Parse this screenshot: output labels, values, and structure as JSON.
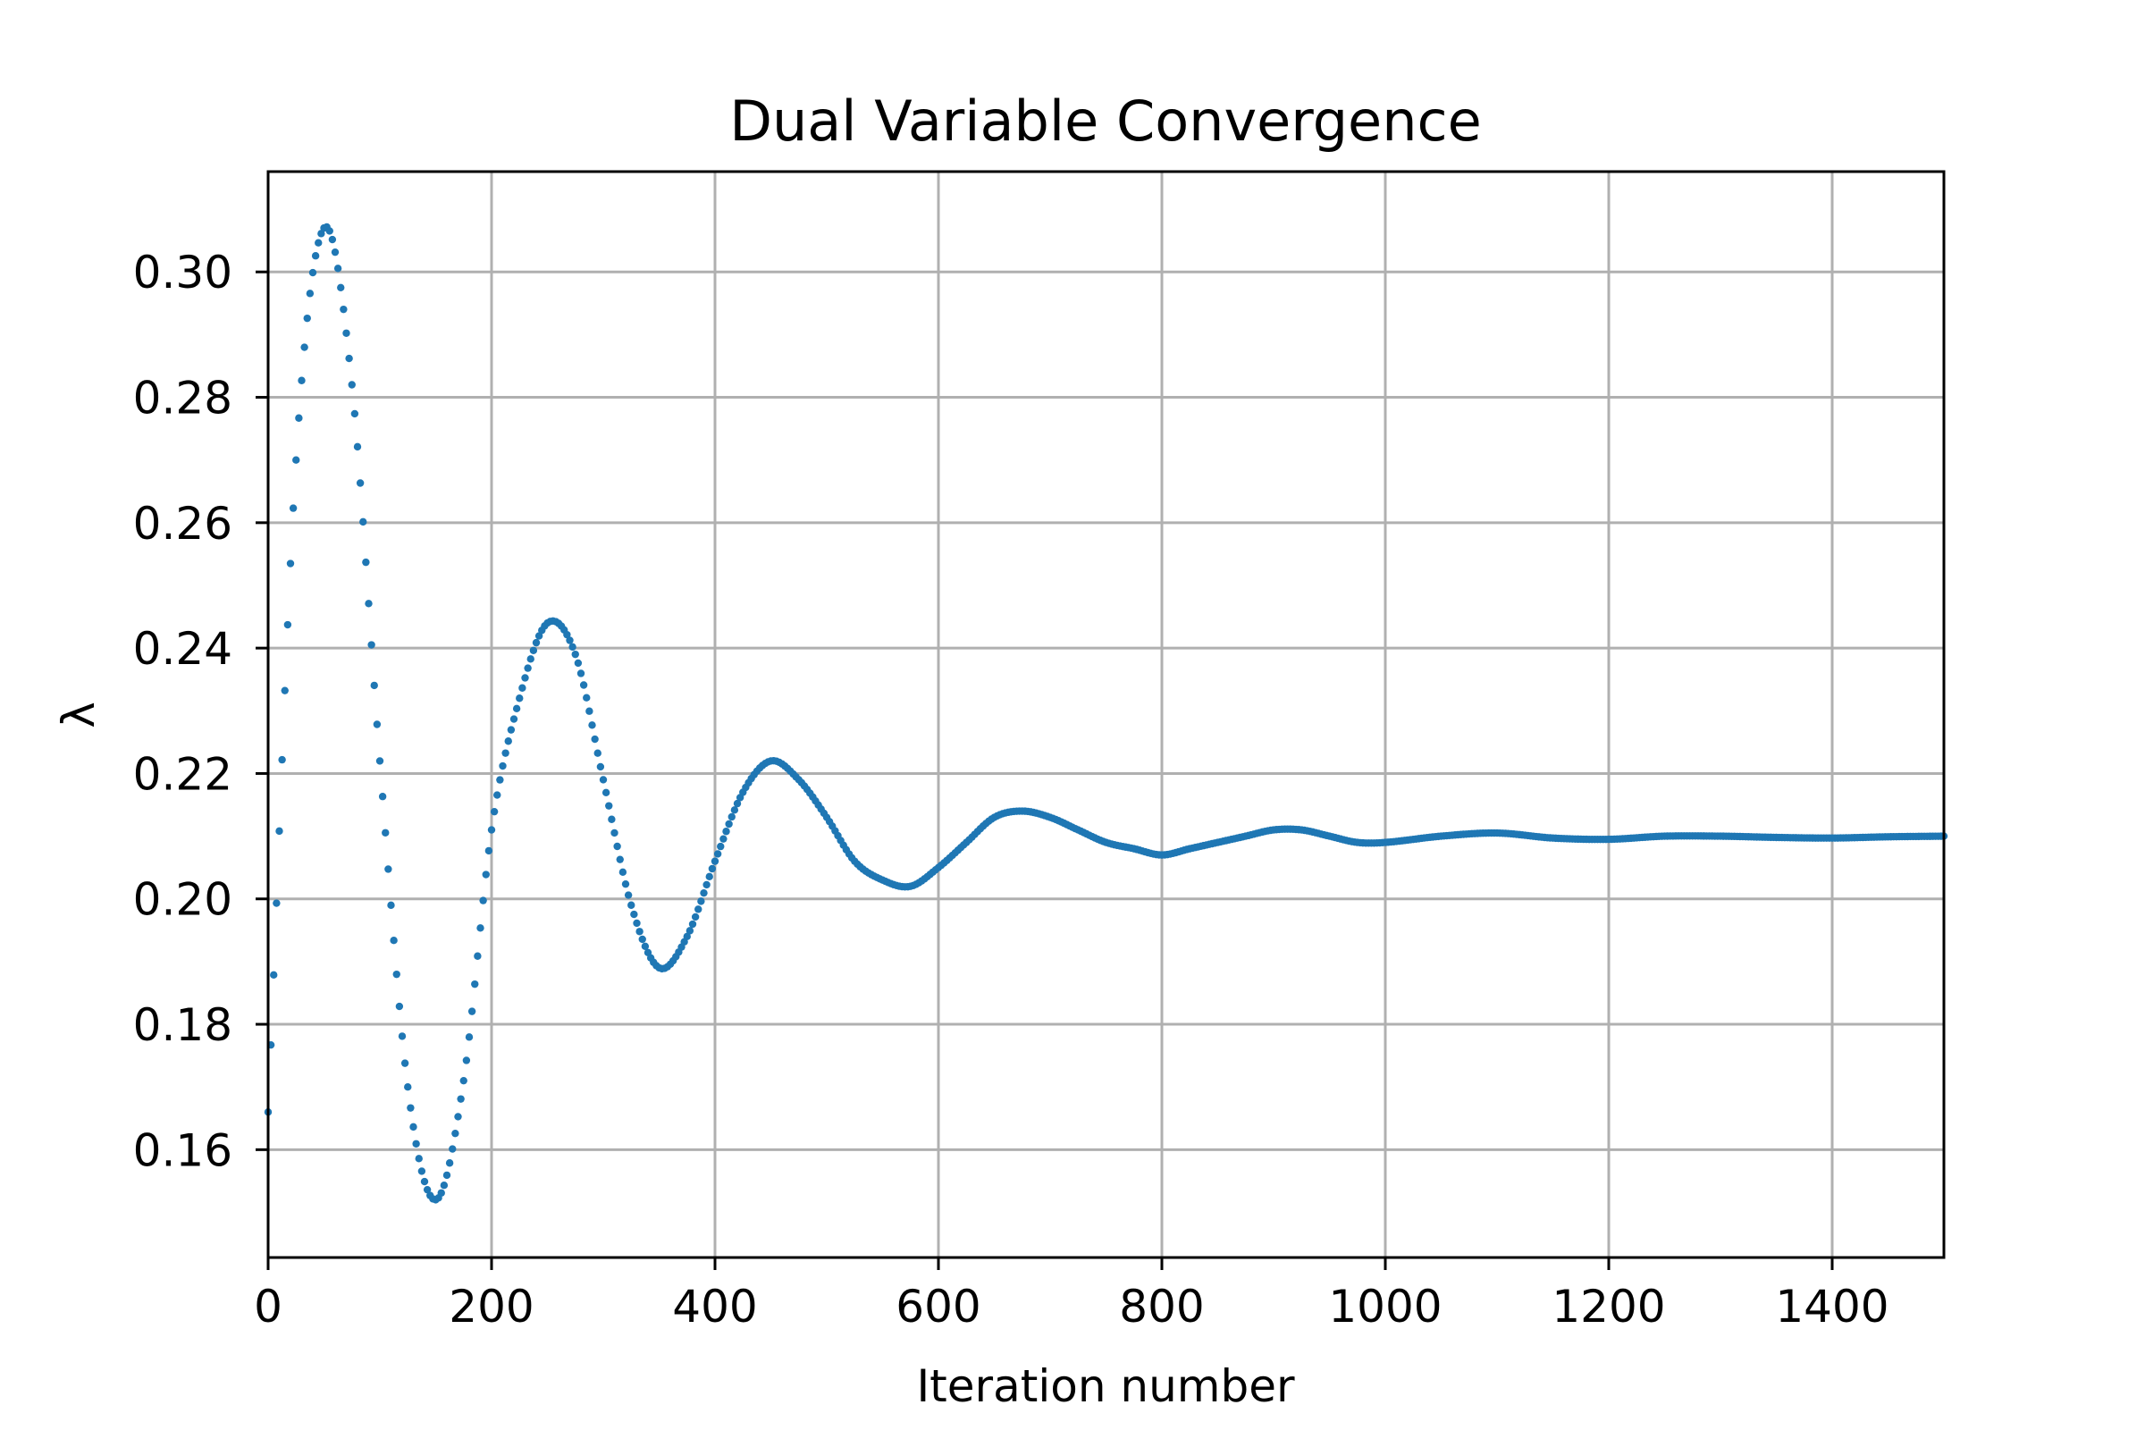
{
  "chart_data": {
    "type": "scatter",
    "title": "Dual Variable Convergence",
    "xlabel": "Iteration number",
    "ylabel": "λ",
    "xlim": [
      0,
      1500
    ],
    "ylim": [
      0.1428,
      0.316
    ],
    "grid": true,
    "x_ticks": [
      0,
      200,
      400,
      600,
      800,
      1000,
      1200,
      1400
    ],
    "x_tick_labels": [
      "0",
      "200",
      "400",
      "600",
      "800",
      "1000",
      "1200",
      "1400"
    ],
    "y_ticks": [
      0.16,
      0.18,
      0.2,
      0.22,
      0.24,
      0.26,
      0.28,
      0.3
    ],
    "y_tick_labels": [
      "0.16",
      "0.18",
      "0.20",
      "0.22",
      "0.24",
      "0.26",
      "0.28",
      "0.30"
    ],
    "marker_color": "#1f77b4",
    "series": [
      {
        "x": [
          0,
          25,
          50,
          75,
          100,
          125,
          150,
          175,
          200,
          225,
          250,
          275,
          300,
          325,
          350,
          375,
          400,
          425,
          450,
          475,
          500,
          525,
          550,
          575,
          600,
          625,
          650,
          675,
          700,
          725,
          750,
          775,
          800,
          825,
          850,
          875,
          900,
          925,
          950,
          975,
          1000,
          1050,
          1100,
          1150,
          1200,
          1250,
          1300,
          1350,
          1400,
          1450,
          1500
        ],
        "values": [
          0.166,
          0.27,
          0.307,
          0.282,
          0.222,
          0.17,
          0.152,
          0.171,
          0.211,
          0.232,
          0.244,
          0.239,
          0.219,
          0.199,
          0.189,
          0.194,
          0.206,
          0.217,
          0.222,
          0.219,
          0.213,
          0.206,
          0.203,
          0.202,
          0.205,
          0.209,
          0.213,
          0.214,
          0.213,
          0.211,
          0.209,
          0.208,
          0.207,
          0.208,
          0.209,
          0.21,
          0.211,
          0.211,
          0.21,
          0.209,
          0.209,
          0.21,
          0.2105,
          0.2097,
          0.2095,
          0.21,
          0.21,
          0.2098,
          0.2097,
          0.2099,
          0.21
        ]
      }
    ]
  }
}
